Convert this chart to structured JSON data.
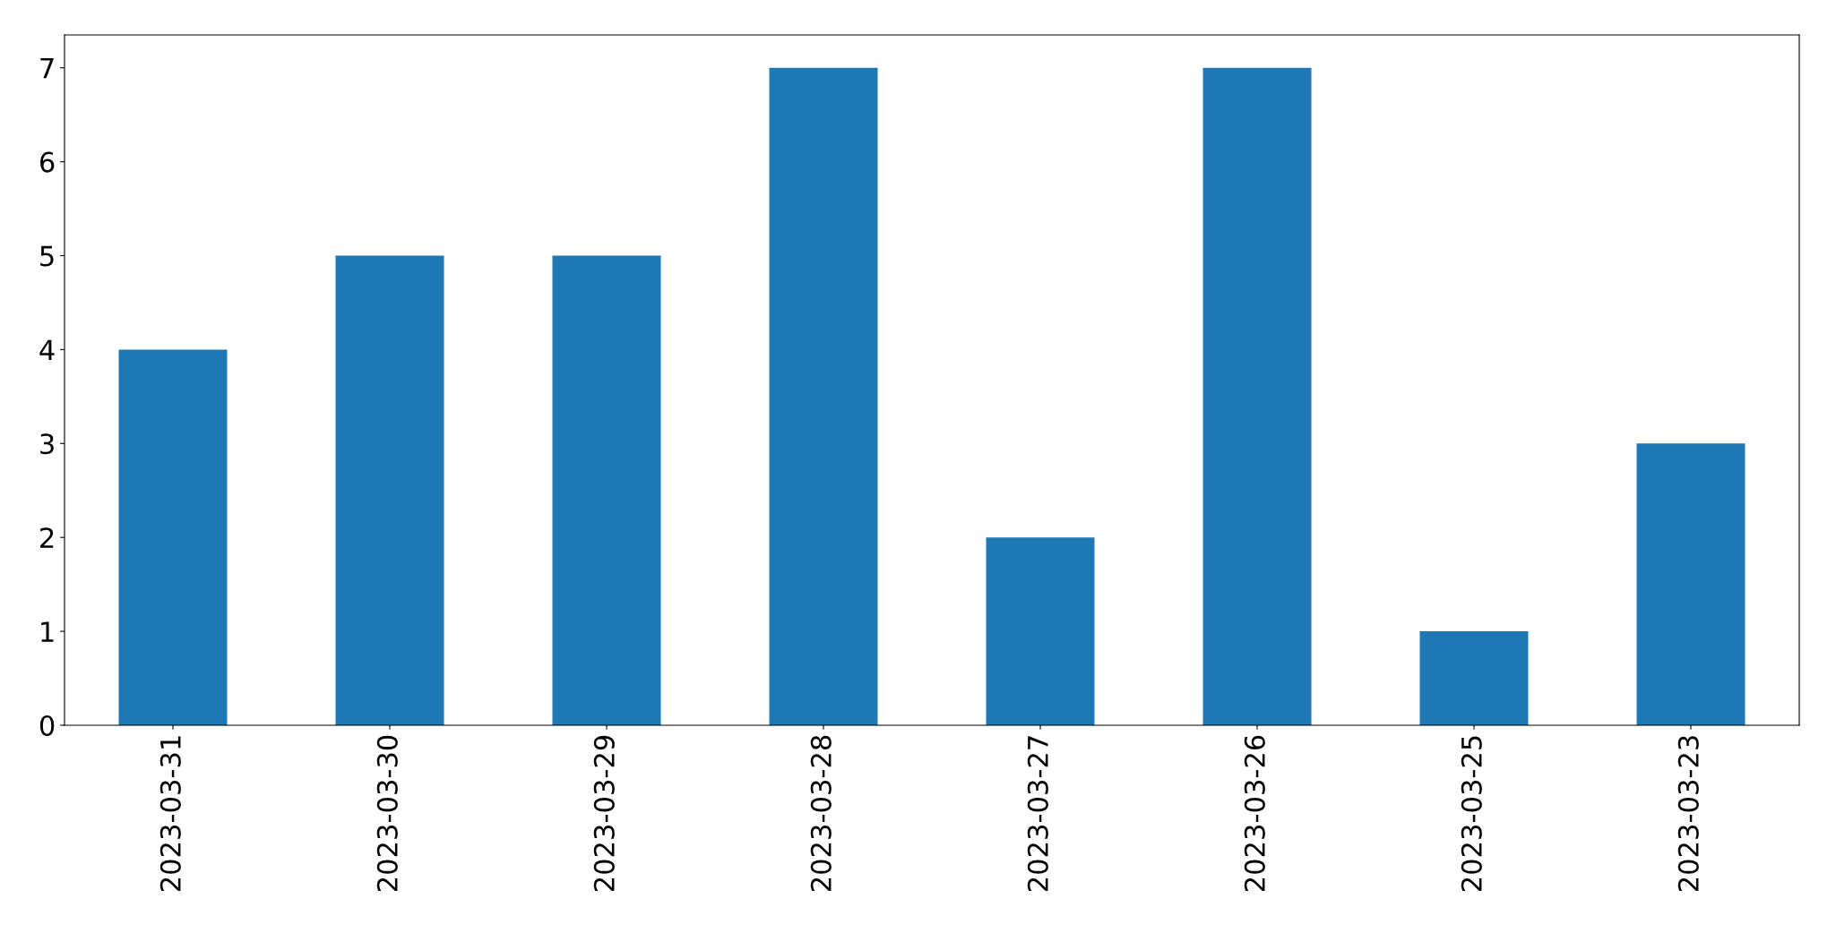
{
  "chart_data": {
    "type": "bar",
    "categories": [
      "2023-03-31",
      "2023-03-30",
      "2023-03-29",
      "2023-03-28",
      "2023-03-27",
      "2023-03-26",
      "2023-03-25",
      "2023-03-23"
    ],
    "values": [
      4,
      5,
      5,
      7,
      2,
      7,
      1,
      3
    ],
    "color": "#1f77b4",
    "ylim": [
      0,
      7.35
    ],
    "yticks": [
      0,
      1,
      2,
      3,
      4,
      5,
      6,
      7
    ],
    "grid": false
  }
}
